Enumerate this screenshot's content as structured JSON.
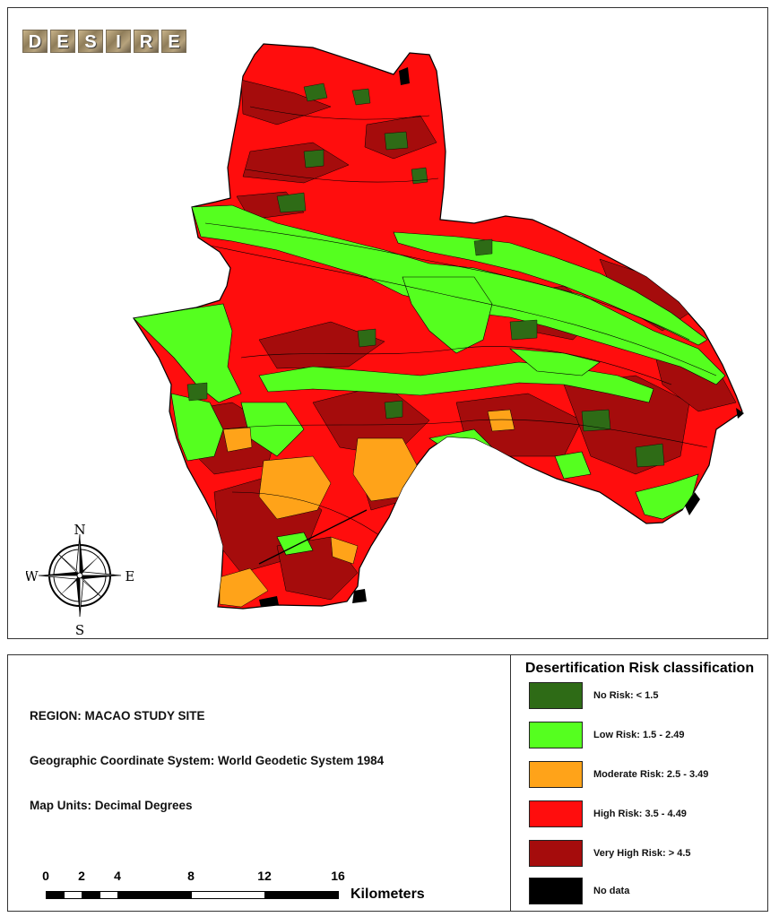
{
  "logo": {
    "letters": [
      "D",
      "E",
      "S",
      "I",
      "R",
      "E"
    ]
  },
  "compass": {
    "north": "N",
    "south": "S",
    "east": "E",
    "west": "W"
  },
  "info": {
    "region": "REGION: MACAO STUDY SITE",
    "coordinate_system": "Geographic Coordinate System: World Geodetic System 1984",
    "map_units": "Map Units: Decimal Degrees"
  },
  "legend": {
    "title": "Desertification Risk classification",
    "items": [
      {
        "label": "No Risk: < 1.5",
        "color": "#2e6b16"
      },
      {
        "label": "Low Risk: 1.5 - 2.49",
        "color": "#55ff1f"
      },
      {
        "label": "Moderate Risk: 2.5 - 3.49",
        "color": "#ffa319"
      },
      {
        "label": "High Risk: 3.5 - 4.49",
        "color": "#ff0d0d"
      },
      {
        "label": "Very High Risk: > 4.5",
        "color": "#a50c0c"
      },
      {
        "label": "No data",
        "color": "#000000"
      }
    ]
  },
  "scalebar": {
    "ticks": [
      "0",
      "2",
      "4",
      "8",
      "12",
      "16"
    ],
    "unit": "Kilometers"
  }
}
